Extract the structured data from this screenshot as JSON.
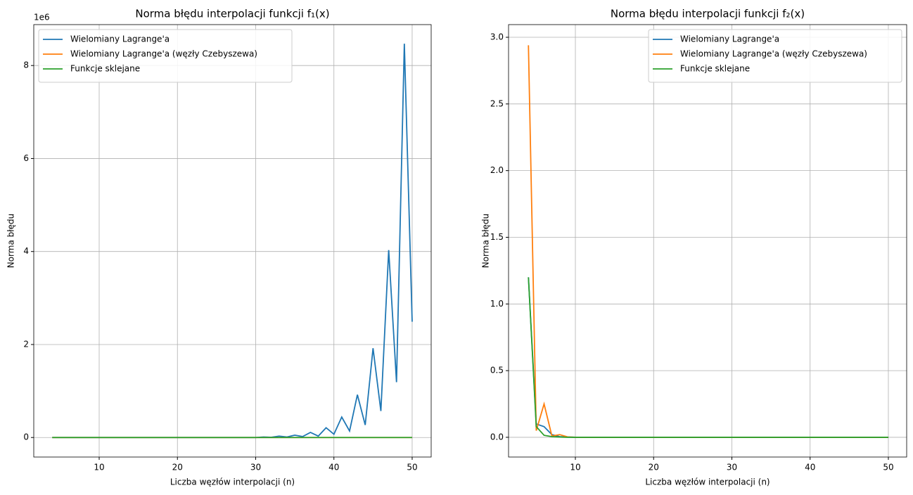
{
  "chart_data": [
    {
      "type": "line",
      "title": "Norma błędu interpolacji funkcji f₁(x)",
      "x_label": "Liczba węzłów interpolacji (n)",
      "y_label": "Norma błędu",
      "y_offset_text": "1e6",
      "x": [
        4,
        5,
        6,
        7,
        8,
        9,
        10,
        11,
        12,
        13,
        14,
        15,
        16,
        17,
        18,
        19,
        20,
        21,
        22,
        23,
        24,
        25,
        26,
        27,
        28,
        29,
        30,
        31,
        32,
        33,
        34,
        35,
        36,
        37,
        38,
        39,
        40,
        41,
        42,
        43,
        44,
        45,
        46,
        47,
        48,
        49,
        50
      ],
      "series": [
        {
          "name": "Wielomiany Lagrange'a",
          "color": "#1f77b4",
          "values": [
            0,
            0,
            0,
            0,
            0,
            0,
            0,
            0,
            0,
            0,
            0,
            0,
            0,
            0,
            0,
            0,
            0,
            0,
            0,
            0,
            0,
            0,
            0,
            0,
            0,
            0,
            0,
            0.01,
            0.005,
            0.03,
            0.01,
            0.05,
            0.02,
            0.11,
            0.03,
            0.21,
            0.07,
            0.44,
            0.14,
            0.92,
            0.27,
            1.92,
            0.57,
            4.03,
            1.19,
            8.47,
            2.49
          ]
        },
        {
          "name": "Wielomiany Lagrange'a (węzły Czebyszewa)",
          "color": "#ff7f0e",
          "values": [
            0,
            0,
            0,
            0,
            0,
            0,
            0,
            0,
            0,
            0,
            0,
            0,
            0,
            0,
            0,
            0,
            0,
            0,
            0,
            0,
            0,
            0,
            0,
            0,
            0,
            0,
            0,
            0,
            0,
            0,
            0,
            0,
            0,
            0,
            0,
            0,
            0,
            0,
            0,
            0,
            0,
            0,
            0,
            0,
            0,
            0,
            0
          ]
        },
        {
          "name": "Funkcje sklejane",
          "color": "#2ca02c",
          "values": [
            0,
            0,
            0,
            0,
            0,
            0,
            0,
            0,
            0,
            0,
            0,
            0,
            0,
            0,
            0,
            0,
            0,
            0,
            0,
            0,
            0,
            0,
            0,
            0,
            0,
            0,
            0,
            0,
            0,
            0,
            0,
            0,
            0,
            0,
            0,
            0,
            0,
            0,
            0,
            0,
            0,
            0,
            0,
            0,
            0,
            0,
            0
          ]
        }
      ],
      "xlim": [
        1.64,
        52.43
      ],
      "xticks": [
        10,
        20,
        30,
        40,
        50
      ],
      "ylim": [
        -0.42,
        8.88
      ],
      "yticks": [
        0,
        2,
        4,
        6,
        8
      ],
      "grid": true,
      "legend": "upper-left"
    },
    {
      "type": "line",
      "title": "Norma błędu interpolacji funkcji f₂(x)",
      "x_label": "Liczba węzłów interpolacji (n)",
      "y_label": "Norma błędu",
      "x": [
        4,
        5,
        6,
        7,
        8,
        9,
        10,
        11,
        12,
        13,
        14,
        15,
        16,
        17,
        18,
        19,
        20,
        21,
        22,
        23,
        24,
        25,
        26,
        27,
        28,
        29,
        30,
        31,
        32,
        33,
        34,
        35,
        36,
        37,
        38,
        39,
        40,
        41,
        42,
        43,
        44,
        45,
        46,
        47,
        48,
        49,
        50
      ],
      "series": [
        {
          "name": "Wielomiany Lagrange'a",
          "color": "#1f77b4",
          "values": [
            1.2,
            0.1,
            0.08,
            0.02,
            0.005,
            0.002,
            0,
            0,
            0,
            0,
            0,
            0,
            0,
            0,
            0,
            0,
            0,
            0,
            0,
            0,
            0,
            0,
            0,
            0,
            0,
            0,
            0,
            0,
            0,
            0,
            0,
            0,
            0,
            0,
            0,
            0,
            0,
            0,
            0,
            0,
            0,
            0,
            0,
            0,
            0,
            0,
            0
          ]
        },
        {
          "name": "Wielomiany Lagrange'a (węzły Czebyszewa)",
          "color": "#ff7f0e",
          "values": [
            2.94,
            0.05,
            0.25,
            0.01,
            0.02,
            0.003,
            0,
            0,
            0,
            0,
            0,
            0,
            0,
            0,
            0,
            0,
            0,
            0,
            0,
            0,
            0,
            0,
            0,
            0,
            0,
            0,
            0,
            0,
            0,
            0,
            0,
            0,
            0,
            0,
            0,
            0,
            0,
            0,
            0,
            0,
            0,
            0,
            0,
            0,
            0,
            0,
            0
          ]
        },
        {
          "name": "Funkcje sklejane",
          "color": "#2ca02c",
          "values": [
            1.2,
            0.08,
            0.015,
            0.005,
            0.002,
            0,
            0,
            0,
            0,
            0,
            0,
            0,
            0,
            0,
            0,
            0,
            0,
            0,
            0,
            0,
            0,
            0,
            0,
            0,
            0,
            0,
            0,
            0,
            0,
            0,
            0,
            0,
            0,
            0,
            0,
            0,
            0,
            0,
            0,
            0,
            0,
            0,
            0,
            0,
            0,
            0,
            0
          ]
        }
      ],
      "xlim": [
        1.46,
        52.34
      ],
      "xticks": [
        10,
        20,
        30,
        40,
        50
      ],
      "ylim": [
        -0.148,
        3.095
      ],
      "yticks": [
        {
          "value": 0,
          "label": "0.0"
        },
        {
          "value": 0.5,
          "label": "0.5"
        },
        {
          "value": 1,
          "label": "1.0"
        },
        {
          "value": 1.5,
          "label": "1.5"
        },
        {
          "value": 2,
          "label": "2.0"
        },
        {
          "value": 2.5,
          "label": "2.5"
        },
        {
          "value": 3,
          "label": "3.0"
        }
      ],
      "grid": true,
      "legend": "upper-right"
    }
  ]
}
